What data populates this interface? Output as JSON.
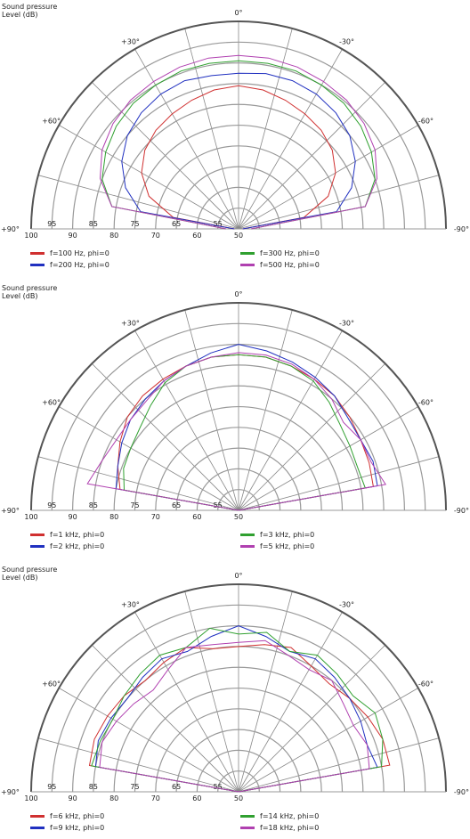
{
  "chart_data": [
    {
      "type": "polar",
      "ylabel": "Sound pressure\nLevel  (dB)",
      "r_unit": "(deg)",
      "r_range": [
        50,
        100
      ],
      "r_ticks": [
        100,
        95,
        90,
        85,
        80,
        75,
        70,
        65,
        60,
        55,
        50
      ],
      "angle_labels": {
        "top": "0°",
        "pos30": "+30°",
        "neg30": "-30°",
        "pos60": "+60°",
        "neg60": "-60°",
        "pos90": "+90°",
        "neg90": "-90°"
      },
      "angles": [
        -90,
        -80,
        -70,
        -60,
        -50,
        -40,
        -30,
        -20,
        -10,
        0,
        10,
        20,
        30,
        40,
        50,
        60,
        70,
        80,
        90
      ],
      "series": [
        {
          "name": "f=100 Hz, phi=0",
          "color": "#d03030",
          "values": [
            51,
            66,
            73,
            77,
            79.5,
            81,
            82,
            83,
            84,
            84.5,
            84,
            83,
            82,
            81,
            79.5,
            77,
            73,
            66,
            51
          ]
        },
        {
          "name": "f=200 Hz, phi=0",
          "color": "#2030c0",
          "values": [
            51,
            74,
            79,
            82.5,
            85,
            86.5,
            87.5,
            88,
            88,
            87.5,
            87.5,
            88,
            87.5,
            86.5,
            85,
            82.5,
            79,
            74,
            51
          ]
        },
        {
          "name": "f=300 Hz, phi=0",
          "color": "#30a030",
          "values": [
            53,
            81,
            85,
            87,
            88.5,
            89.5,
            90,
            90.5,
            90.5,
            90.5,
            90.5,
            90.5,
            90,
            89.5,
            88.5,
            87,
            85,
            81,
            53
          ]
        },
        {
          "name": "f=500 Hz, phi=0",
          "color": "#b040b0",
          "values": [
            53,
            81,
            85.5,
            88,
            89.5,
            90.5,
            91,
            91.5,
            91.8,
            91.8,
            91.8,
            91.5,
            91,
            90.5,
            89.5,
            88,
            85.5,
            81,
            53
          ]
        }
      ]
    },
    {
      "type": "polar",
      "ylabel": "Sound pressure\nLevel  (dB)",
      "r_unit": "(deg)",
      "r_range": [
        50,
        100
      ],
      "r_ticks": [
        100,
        95,
        90,
        85,
        80,
        75,
        70,
        65,
        60,
        55,
        50
      ],
      "angle_labels": {
        "top": "0°",
        "pos30": "+30°",
        "neg30": "-30°",
        "pos60": "+60°",
        "neg60": "-60°",
        "pos90": "+90°",
        "neg90": "-90°"
      },
      "angles": [
        -90,
        -80,
        -70,
        -60,
        -50,
        -40,
        -30,
        -20,
        -10,
        0,
        10,
        20,
        30,
        40,
        50,
        60,
        70,
        80,
        90
      ],
      "series": [
        {
          "name": "f=1 kHz, phi=0",
          "color": "#d03030",
          "values": [
            50,
            83,
            83.5,
            84,
            85,
            86,
            86.5,
            87,
            87.5,
            87.5,
            87.5,
            87,
            86.5,
            86,
            85,
            83,
            81,
            79,
            50
          ]
        },
        {
          "name": "f=2 kHz, phi=0",
          "color": "#2030c0",
          "values": [
            50,
            84,
            84.5,
            84,
            84.5,
            86,
            87,
            88,
            89,
            90,
            88.5,
            87,
            86,
            85,
            84,
            82.5,
            81,
            80,
            50
          ]
        },
        {
          "name": "f=3 kHz, phi=0",
          "color": "#30a030",
          "values": [
            50,
            81,
            80.5,
            81,
            82,
            84,
            86,
            87,
            87.5,
            87.5,
            87.5,
            87,
            85.5,
            83,
            81,
            80,
            79.5,
            78,
            50
          ]
        },
        {
          "name": "f=5 kHz, phi=0",
          "color": "#b040b0",
          "values": [
            50,
            86,
            84,
            84,
            83,
            85,
            86.5,
            87.5,
            88,
            88,
            87.5,
            87,
            86,
            84.5,
            84,
            84,
            85,
            87,
            50
          ]
        }
      ]
    },
    {
      "type": "polar",
      "ylabel": "Sound pressure\nLevel  (dB)",
      "r_unit": "(deg)",
      "r_range": [
        50,
        100
      ],
      "r_ticks": [
        100,
        95,
        90,
        85,
        80,
        75,
        70,
        65,
        60,
        55,
        50
      ],
      "angle_labels": {
        "top": "0°",
        "pos30": "+30°",
        "neg30": "-30°",
        "pos60": "+60°",
        "neg60": "-60°",
        "pos90": "+90°",
        "neg90": "-90°"
      },
      "angles": [
        -90,
        -80,
        -70,
        -60,
        -50,
        -40,
        -30,
        -20,
        -10,
        0,
        10,
        20,
        30,
        40,
        50,
        60,
        70,
        80,
        90
      ],
      "series": [
        {
          "name": "f=6 kHz, phi=0",
          "color": "#d03030",
          "values": [
            50,
            87,
            87,
            86,
            85,
            84,
            85,
            87,
            86,
            85,
            85,
            87,
            86,
            85,
            86,
            86.5,
            87,
            86.5,
            50
          ]
        },
        {
          "name": "f=9 kHz, phi=0",
          "color": "#2030c0",
          "values": [
            50,
            84,
            83,
            84,
            85,
            86,
            87,
            86,
            88,
            90,
            88,
            86,
            87,
            86,
            85,
            85.5,
            86,
            85,
            50
          ]
        },
        {
          "name": "f=14 kHz, phi=0",
          "color": "#30a030",
          "values": [
            50,
            85,
            87,
            88,
            86,
            87,
            88,
            86,
            89,
            88,
            90,
            87,
            88,
            87,
            86,
            85,
            85.5,
            86,
            50
          ]
        },
        {
          "name": "f=18 kHz, phi=0",
          "color": "#b040b0",
          "values": [
            50,
            82,
            83,
            82,
            83,
            85,
            84,
            85,
            87,
            86,
            86,
            87,
            84,
            82,
            83,
            84,
            85,
            84,
            50
          ]
        }
      ]
    }
  ]
}
